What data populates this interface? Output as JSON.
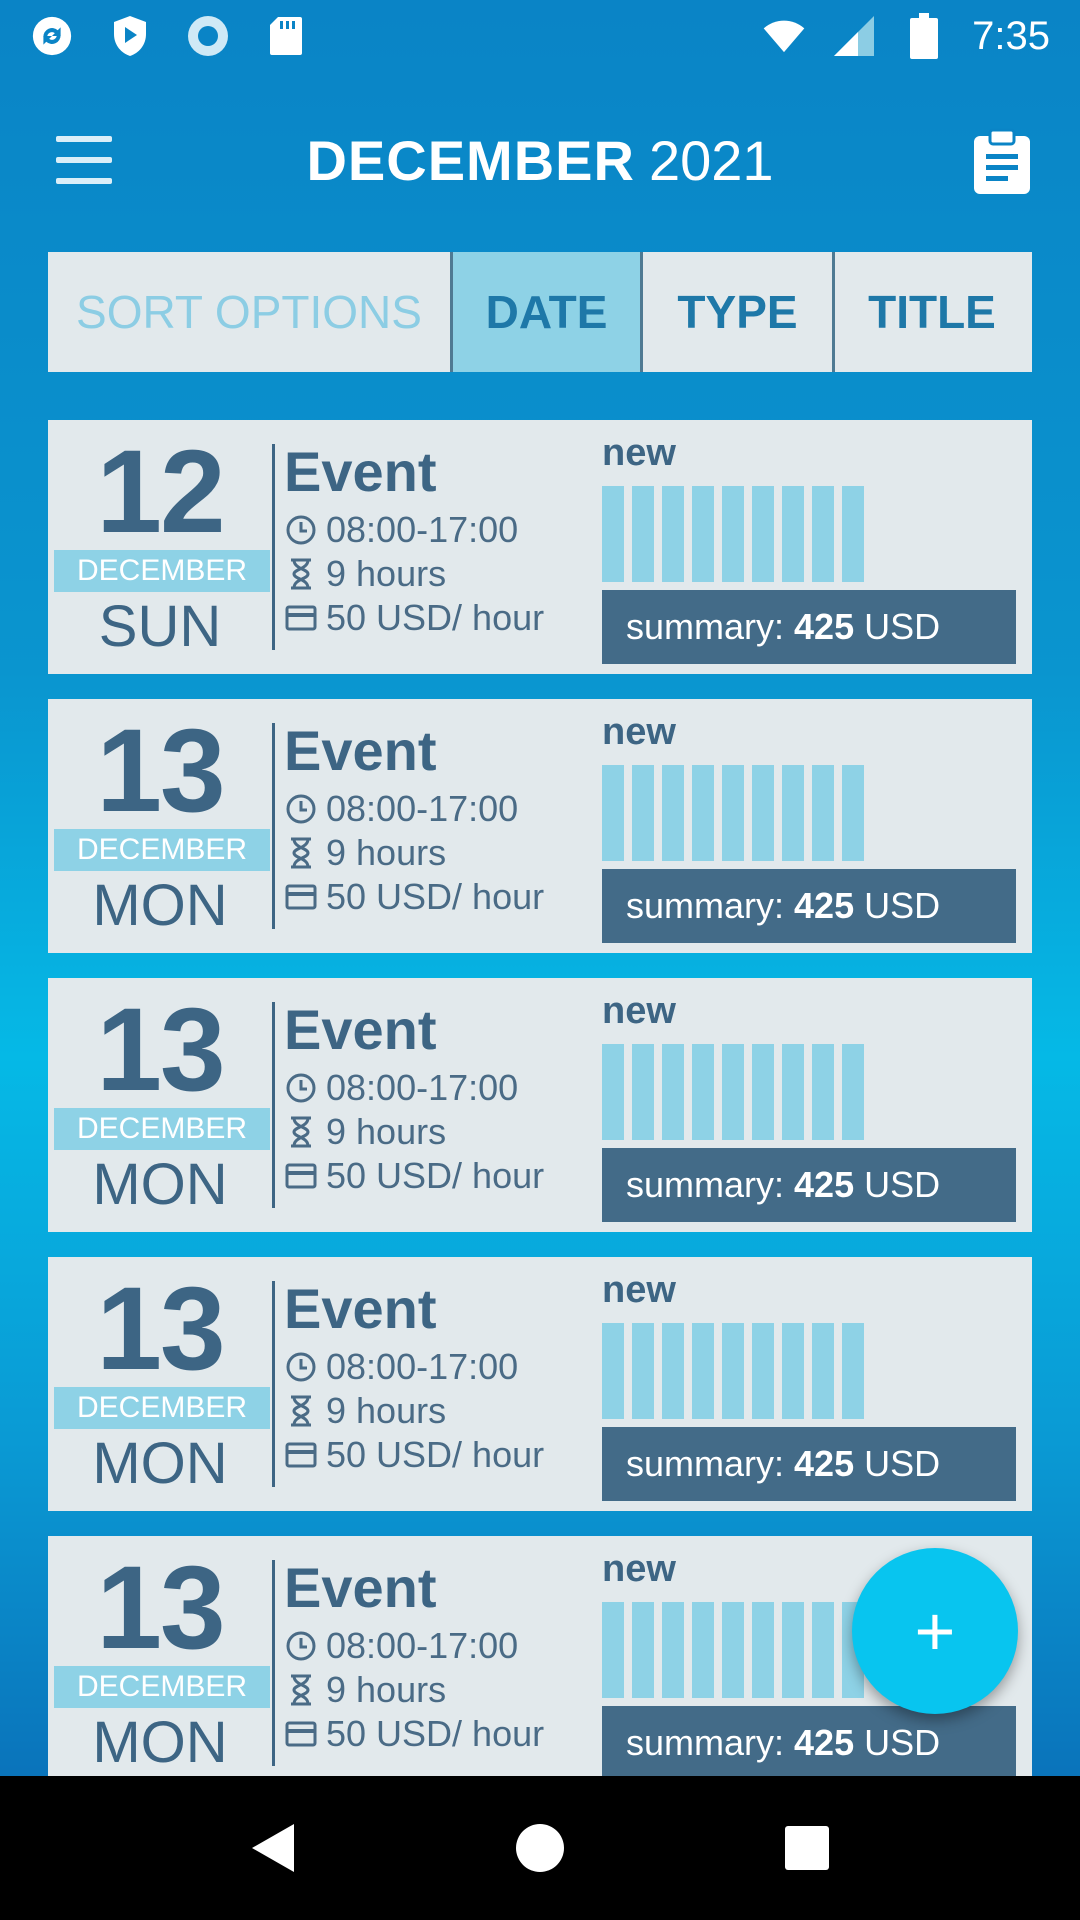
{
  "statusbar": {
    "time": "7:35",
    "left_icons": [
      "refresh-badge-icon",
      "shield-play-icon",
      "record-circle-icon",
      "sd-card-icon"
    ],
    "right_icons": [
      "wifi-icon",
      "cell-signal-icon",
      "battery-icon"
    ]
  },
  "appbar": {
    "month": "DECEMBER",
    "year": "2021",
    "menu_icon": "hamburger-menu-icon",
    "action_icon": "clipboard-icon"
  },
  "sort": {
    "label": "SORT OPTIONS",
    "options": [
      {
        "label": "DATE",
        "active": true
      },
      {
        "label": "TYPE",
        "active": false
      },
      {
        "label": "TITLE",
        "active": false
      }
    ]
  },
  "events": [
    {
      "day": "12",
      "month": "DECEMBER",
      "weekday": "SUN",
      "title": "Event",
      "time": "08:00-17:00",
      "duration": "9 hours",
      "rate": "50 USD/ hour",
      "status": "new",
      "progress_bars": 9,
      "summary_label": "summary:",
      "summary_value": "425",
      "summary_currency": "USD"
    },
    {
      "day": "13",
      "month": "DECEMBER",
      "weekday": "MON",
      "title": "Event",
      "time": "08:00-17:00",
      "duration": "9 hours",
      "rate": "50 USD/ hour",
      "status": "new",
      "progress_bars": 9,
      "summary_label": "summary:",
      "summary_value": "425",
      "summary_currency": "USD"
    },
    {
      "day": "13",
      "month": "DECEMBER",
      "weekday": "MON",
      "title": "Event",
      "time": "08:00-17:00",
      "duration": "9 hours",
      "rate": "50 USD/ hour",
      "status": "new",
      "progress_bars": 9,
      "summary_label": "summary:",
      "summary_value": "425",
      "summary_currency": "USD"
    },
    {
      "day": "13",
      "month": "DECEMBER",
      "weekday": "MON",
      "title": "Event",
      "time": "08:00-17:00",
      "duration": "9 hours",
      "rate": "50 USD/ hour",
      "status": "new",
      "progress_bars": 9,
      "summary_label": "summary:",
      "summary_value": "425",
      "summary_currency": "USD"
    },
    {
      "day": "13",
      "month": "DECEMBER",
      "weekday": "MON",
      "title": "Event",
      "time": "08:00-17:00",
      "duration": "9 hours",
      "rate": "50 USD/ hour",
      "status": "new",
      "progress_bars": 9,
      "summary_label": "summary:",
      "summary_value": "425",
      "summary_currency": "USD"
    }
  ],
  "fab": {
    "label": "+",
    "icon": "plus-icon"
  },
  "navbar": {
    "icons": [
      "back-icon",
      "home-icon",
      "recents-icon"
    ]
  },
  "colors": {
    "accent": "#08c5ef",
    "card_bg": "#e2e9ec",
    "text_dark": "#3d6584",
    "bar_fill": "#8ed2e6",
    "summary_bg": "#436b88"
  }
}
